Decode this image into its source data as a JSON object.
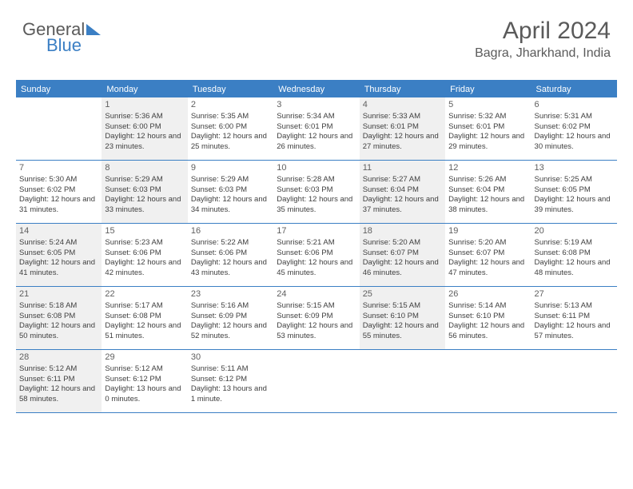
{
  "logo": {
    "text_part1": "General",
    "text_part2": "Blue"
  },
  "header": {
    "month_title": "April 2024",
    "location": "Bagra, Jharkhand, India"
  },
  "weekdays": [
    "Sunday",
    "Monday",
    "Tuesday",
    "Wednesday",
    "Thursday",
    "Friday",
    "Saturday"
  ],
  "colors": {
    "accent": "#3b7fc4",
    "text": "#5a5a5a",
    "cell_text": "#404040",
    "shaded_bg": "#f0f0f0",
    "white": "#ffffff"
  },
  "weeks": [
    [
      {
        "day": "",
        "shaded": false,
        "lines": []
      },
      {
        "day": "1",
        "shaded": true,
        "lines": [
          "Sunrise: 5:36 AM",
          "Sunset: 6:00 PM",
          "Daylight: 12 hours and 23 minutes."
        ]
      },
      {
        "day": "2",
        "shaded": false,
        "lines": [
          "Sunrise: 5:35 AM",
          "Sunset: 6:00 PM",
          "Daylight: 12 hours and 25 minutes."
        ]
      },
      {
        "day": "3",
        "shaded": false,
        "lines": [
          "Sunrise: 5:34 AM",
          "Sunset: 6:01 PM",
          "Daylight: 12 hours and 26 minutes."
        ]
      },
      {
        "day": "4",
        "shaded": true,
        "lines": [
          "Sunrise: 5:33 AM",
          "Sunset: 6:01 PM",
          "Daylight: 12 hours and 27 minutes."
        ]
      },
      {
        "day": "5",
        "shaded": false,
        "lines": [
          "Sunrise: 5:32 AM",
          "Sunset: 6:01 PM",
          "Daylight: 12 hours and 29 minutes."
        ]
      },
      {
        "day": "6",
        "shaded": false,
        "lines": [
          "Sunrise: 5:31 AM",
          "Sunset: 6:02 PM",
          "Daylight: 12 hours and 30 minutes."
        ]
      }
    ],
    [
      {
        "day": "7",
        "shaded": false,
        "lines": [
          "Sunrise: 5:30 AM",
          "Sunset: 6:02 PM",
          "Daylight: 12 hours and 31 minutes."
        ]
      },
      {
        "day": "8",
        "shaded": true,
        "lines": [
          "Sunrise: 5:29 AM",
          "Sunset: 6:03 PM",
          "Daylight: 12 hours and 33 minutes."
        ]
      },
      {
        "day": "9",
        "shaded": false,
        "lines": [
          "Sunrise: 5:29 AM",
          "Sunset: 6:03 PM",
          "Daylight: 12 hours and 34 minutes."
        ]
      },
      {
        "day": "10",
        "shaded": false,
        "lines": [
          "Sunrise: 5:28 AM",
          "Sunset: 6:03 PM",
          "Daylight: 12 hours and 35 minutes."
        ]
      },
      {
        "day": "11",
        "shaded": true,
        "lines": [
          "Sunrise: 5:27 AM",
          "Sunset: 6:04 PM",
          "Daylight: 12 hours and 37 minutes."
        ]
      },
      {
        "day": "12",
        "shaded": false,
        "lines": [
          "Sunrise: 5:26 AM",
          "Sunset: 6:04 PM",
          "Daylight: 12 hours and 38 minutes."
        ]
      },
      {
        "day": "13",
        "shaded": false,
        "lines": [
          "Sunrise: 5:25 AM",
          "Sunset: 6:05 PM",
          "Daylight: 12 hours and 39 minutes."
        ]
      }
    ],
    [
      {
        "day": "14",
        "shaded": true,
        "lines": [
          "Sunrise: 5:24 AM",
          "Sunset: 6:05 PM",
          "Daylight: 12 hours and 41 minutes."
        ]
      },
      {
        "day": "15",
        "shaded": false,
        "lines": [
          "Sunrise: 5:23 AM",
          "Sunset: 6:06 PM",
          "Daylight: 12 hours and 42 minutes."
        ]
      },
      {
        "day": "16",
        "shaded": false,
        "lines": [
          "Sunrise: 5:22 AM",
          "Sunset: 6:06 PM",
          "Daylight: 12 hours and 43 minutes."
        ]
      },
      {
        "day": "17",
        "shaded": false,
        "lines": [
          "Sunrise: 5:21 AM",
          "Sunset: 6:06 PM",
          "Daylight: 12 hours and 45 minutes."
        ]
      },
      {
        "day": "18",
        "shaded": true,
        "lines": [
          "Sunrise: 5:20 AM",
          "Sunset: 6:07 PM",
          "Daylight: 12 hours and 46 minutes."
        ]
      },
      {
        "day": "19",
        "shaded": false,
        "lines": [
          "Sunrise: 5:20 AM",
          "Sunset: 6:07 PM",
          "Daylight: 12 hours and 47 minutes."
        ]
      },
      {
        "day": "20",
        "shaded": false,
        "lines": [
          "Sunrise: 5:19 AM",
          "Sunset: 6:08 PM",
          "Daylight: 12 hours and 48 minutes."
        ]
      }
    ],
    [
      {
        "day": "21",
        "shaded": true,
        "lines": [
          "Sunrise: 5:18 AM",
          "Sunset: 6:08 PM",
          "Daylight: 12 hours and 50 minutes."
        ]
      },
      {
        "day": "22",
        "shaded": false,
        "lines": [
          "Sunrise: 5:17 AM",
          "Sunset: 6:08 PM",
          "Daylight: 12 hours and 51 minutes."
        ]
      },
      {
        "day": "23",
        "shaded": false,
        "lines": [
          "Sunrise: 5:16 AM",
          "Sunset: 6:09 PM",
          "Daylight: 12 hours and 52 minutes."
        ]
      },
      {
        "day": "24",
        "shaded": false,
        "lines": [
          "Sunrise: 5:15 AM",
          "Sunset: 6:09 PM",
          "Daylight: 12 hours and 53 minutes."
        ]
      },
      {
        "day": "25",
        "shaded": true,
        "lines": [
          "Sunrise: 5:15 AM",
          "Sunset: 6:10 PM",
          "Daylight: 12 hours and 55 minutes."
        ]
      },
      {
        "day": "26",
        "shaded": false,
        "lines": [
          "Sunrise: 5:14 AM",
          "Sunset: 6:10 PM",
          "Daylight: 12 hours and 56 minutes."
        ]
      },
      {
        "day": "27",
        "shaded": false,
        "lines": [
          "Sunrise: 5:13 AM",
          "Sunset: 6:11 PM",
          "Daylight: 12 hours and 57 minutes."
        ]
      }
    ],
    [
      {
        "day": "28",
        "shaded": true,
        "lines": [
          "Sunrise: 5:12 AM",
          "Sunset: 6:11 PM",
          "Daylight: 12 hours and 58 minutes."
        ]
      },
      {
        "day": "29",
        "shaded": false,
        "lines": [
          "Sunrise: 5:12 AM",
          "Sunset: 6:12 PM",
          "Daylight: 13 hours and 0 minutes."
        ]
      },
      {
        "day": "30",
        "shaded": false,
        "lines": [
          "Sunrise: 5:11 AM",
          "Sunset: 6:12 PM",
          "Daylight: 13 hours and 1 minute."
        ]
      },
      {
        "day": "",
        "shaded": false,
        "lines": []
      },
      {
        "day": "",
        "shaded": false,
        "lines": []
      },
      {
        "day": "",
        "shaded": false,
        "lines": []
      },
      {
        "day": "",
        "shaded": false,
        "lines": []
      }
    ]
  ]
}
